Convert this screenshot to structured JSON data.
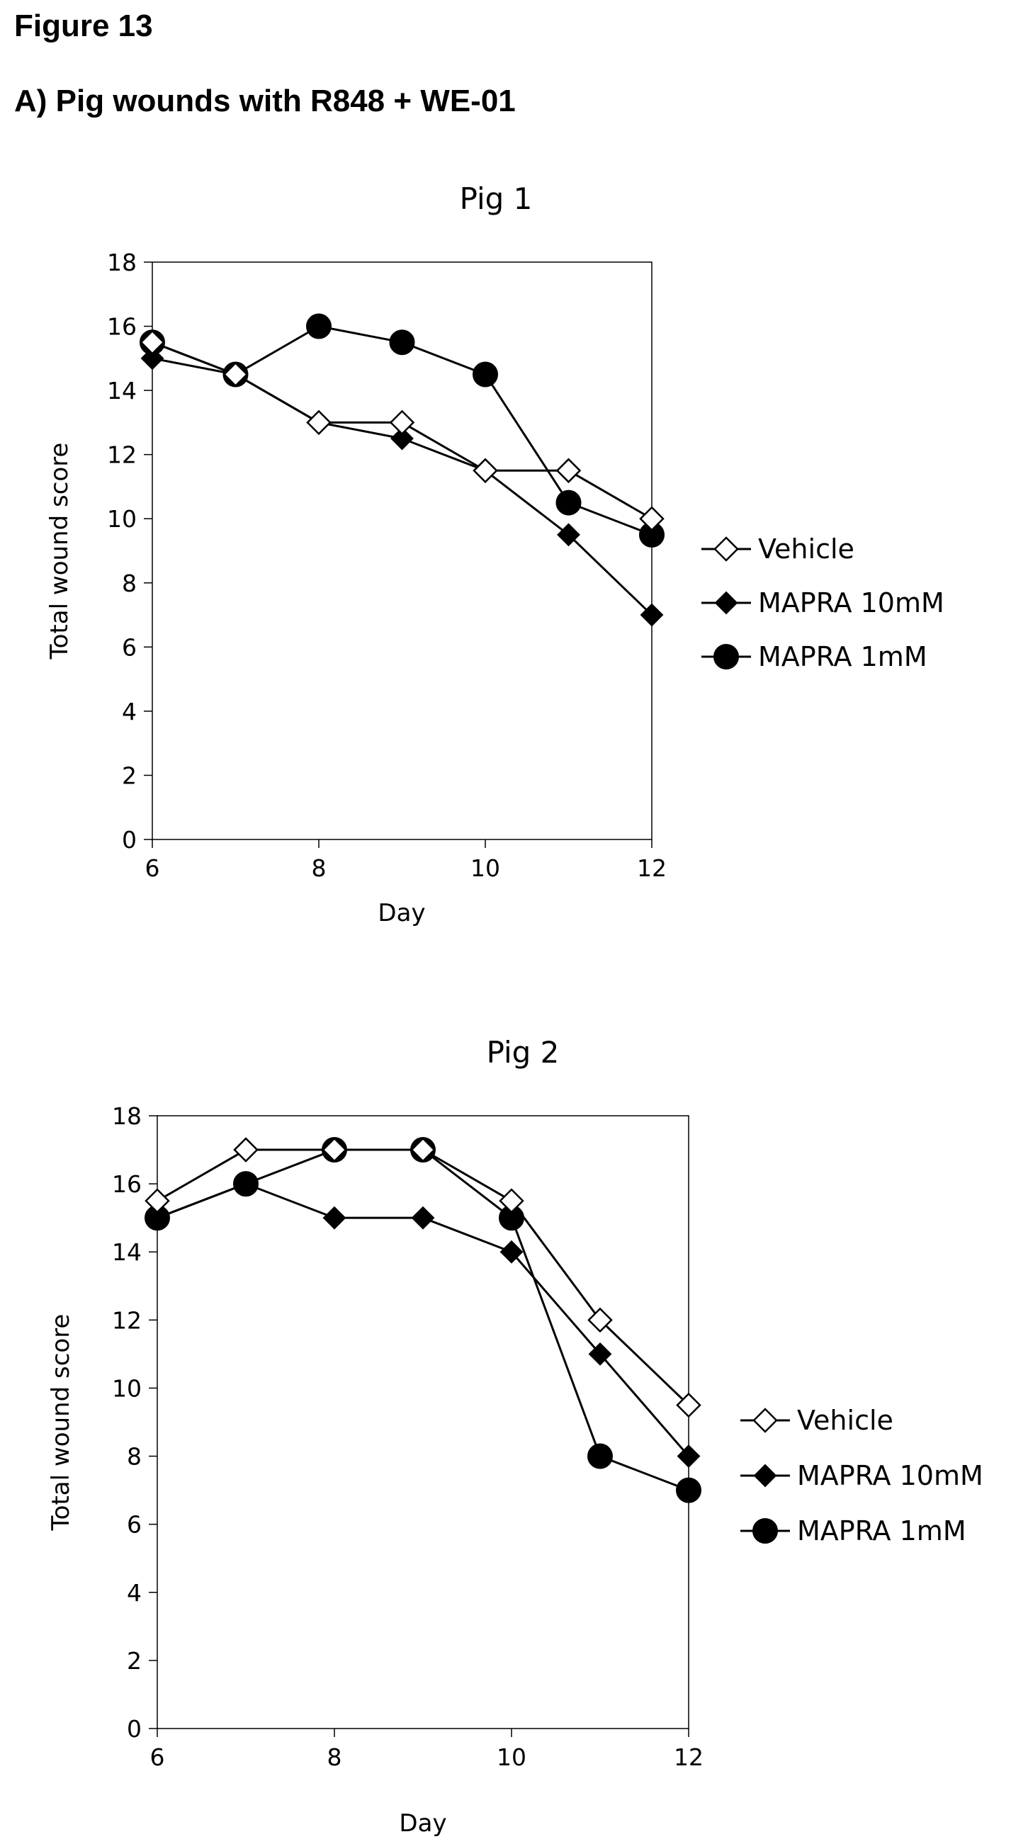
{
  "figure": {
    "label": "Figure 13",
    "subtitle": "A) Pig wounds with R848 + WE-01"
  },
  "colors": {
    "line": "#000000",
    "open_marker_fill": "#ffffff",
    "filled_marker": "#000000"
  },
  "chart_data": [
    {
      "type": "line",
      "title": "Pig 1",
      "xlabel": "Day",
      "ylabel": "Total wound score",
      "xlim": [
        6,
        12
      ],
      "ylim": [
        0,
        18
      ],
      "xticks": [
        6,
        8,
        10,
        12
      ],
      "yticks": [
        0,
        2,
        4,
        6,
        8,
        10,
        12,
        14,
        16,
        18
      ],
      "grid": false,
      "legend": "right",
      "x": [
        6,
        7,
        8,
        9,
        10,
        11,
        12
      ],
      "series": [
        {
          "name": "Vehicle",
          "marker": "open-diamond",
          "values": [
            15.5,
            14.5,
            13,
            13,
            11.5,
            11.5,
            10
          ]
        },
        {
          "name": "MAPRA 10mM",
          "marker": "filled-diamond",
          "values": [
            15,
            14.5,
            13,
            12.5,
            11.5,
            9.5,
            7
          ]
        },
        {
          "name": "MAPRA 1mM",
          "marker": "filled-circle",
          "values": [
            15.5,
            14.5,
            16,
            15.5,
            14.5,
            10.5,
            9.5
          ]
        }
      ]
    },
    {
      "type": "line",
      "title": "Pig 2",
      "xlabel": "Day",
      "ylabel": "Total wound score",
      "xlim": [
        6,
        12
      ],
      "ylim": [
        0,
        18
      ],
      "xticks": [
        6,
        8,
        10,
        12
      ],
      "yticks": [
        0,
        2,
        4,
        6,
        8,
        10,
        12,
        14,
        16,
        18
      ],
      "grid": false,
      "legend": "right",
      "x": [
        6,
        7,
        8,
        9,
        10,
        11,
        12
      ],
      "series": [
        {
          "name": "Vehicle",
          "marker": "open-diamond",
          "values": [
            15.5,
            17,
            17,
            17,
            15.5,
            12,
            9.5
          ]
        },
        {
          "name": "MAPRA 10mM",
          "marker": "filled-diamond",
          "values": [
            15,
            16,
            15,
            15,
            14,
            11,
            8
          ]
        },
        {
          "name": "MAPRA 1mM",
          "marker": "filled-circle",
          "values": [
            15,
            16,
            17,
            17,
            15,
            8,
            7
          ]
        }
      ]
    }
  ]
}
